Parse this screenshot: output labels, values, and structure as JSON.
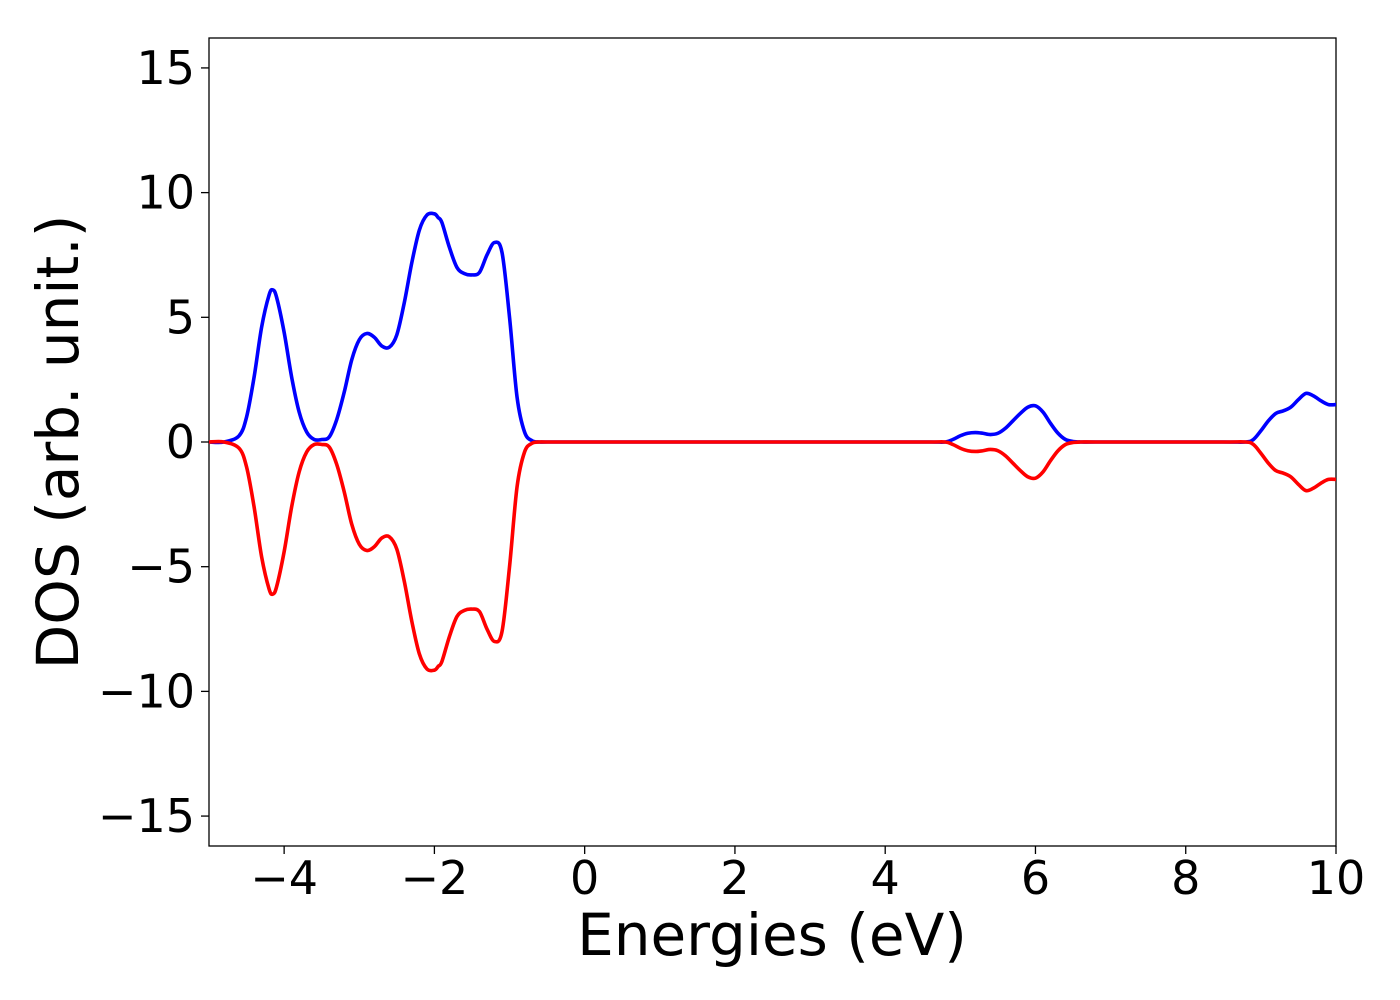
{
  "chart_data": {
    "type": "line",
    "xlabel": "Energies (eV)",
    "ylabel": "DOS (arb. unit.)",
    "xlim": [
      -5,
      10
    ],
    "ylim": [
      -16.2,
      16.2
    ],
    "x_ticks": [
      -4,
      -2,
      0,
      2,
      4,
      6,
      8,
      10
    ],
    "x_tick_labels": [
      "−4",
      "−2",
      "0",
      "2",
      "4",
      "6",
      "8",
      "10"
    ],
    "y_ticks": [
      15,
      10,
      5,
      0,
      -5,
      -10,
      -15
    ],
    "y_tick_labels": [
      "15",
      "10",
      "5",
      "0",
      "−5",
      "−10",
      "−15"
    ],
    "grid": false,
    "series": [
      {
        "color": "#0000ff",
        "x": [
          -5.0,
          -4.8,
          -4.6,
          -4.5,
          -4.4,
          -4.3,
          -4.2,
          -4.15,
          -4.1,
          -4.0,
          -3.9,
          -3.8,
          -3.7,
          -3.6,
          -3.5,
          -3.4,
          -3.3,
          -3.2,
          -3.1,
          -3.0,
          -2.9,
          -2.8,
          -2.7,
          -2.6,
          -2.5,
          -2.4,
          -2.3,
          -2.2,
          -2.1,
          -2.0,
          -1.95,
          -1.9,
          -1.8,
          -1.7,
          -1.6,
          -1.5,
          -1.4,
          -1.3,
          -1.2,
          -1.1,
          -1.0,
          -0.9,
          -0.8,
          -0.7,
          -0.6,
          -0.5,
          0.0,
          2.0,
          4.0,
          4.6,
          4.8,
          4.9,
          5.0,
          5.1,
          5.2,
          5.3,
          5.4,
          5.5,
          5.6,
          5.7,
          5.8,
          5.9,
          6.0,
          6.1,
          6.2,
          6.3,
          6.4,
          6.5,
          6.6,
          6.8,
          7.5,
          8.5,
          8.8,
          8.9,
          9.0,
          9.1,
          9.2,
          9.3,
          9.4,
          9.5,
          9.6,
          9.7,
          9.8,
          9.9,
          10.0
        ],
        "y": [
          0.0,
          0.0,
          0.25,
          1.0,
          2.6,
          4.6,
          5.9,
          6.1,
          5.8,
          4.4,
          2.6,
          1.2,
          0.4,
          0.1,
          0.1,
          0.2,
          0.9,
          2.0,
          3.3,
          4.1,
          4.35,
          4.2,
          3.85,
          3.8,
          4.3,
          5.6,
          7.2,
          8.5,
          9.1,
          9.15,
          9.0,
          8.8,
          7.8,
          7.0,
          6.75,
          6.7,
          6.8,
          7.5,
          8.0,
          7.6,
          5.0,
          1.8,
          0.4,
          0.05,
          0.0,
          0.0,
          0.0,
          0.0,
          0.0,
          0.0,
          0.0,
          0.1,
          0.25,
          0.35,
          0.38,
          0.35,
          0.3,
          0.35,
          0.55,
          0.85,
          1.15,
          1.4,
          1.45,
          1.2,
          0.75,
          0.35,
          0.1,
          0.02,
          0.0,
          0.0,
          0.0,
          0.0,
          0.0,
          0.1,
          0.45,
          0.85,
          1.15,
          1.25,
          1.4,
          1.7,
          1.95,
          1.85,
          1.65,
          1.5,
          1.5
        ]
      },
      {
        "color": "#ff0000",
        "x": [
          -5.0,
          -4.8,
          -4.6,
          -4.5,
          -4.4,
          -4.3,
          -4.2,
          -4.15,
          -4.1,
          -4.0,
          -3.9,
          -3.8,
          -3.7,
          -3.6,
          -3.5,
          -3.4,
          -3.3,
          -3.2,
          -3.1,
          -3.0,
          -2.9,
          -2.8,
          -2.7,
          -2.6,
          -2.5,
          -2.4,
          -2.3,
          -2.2,
          -2.1,
          -2.0,
          -1.95,
          -1.9,
          -1.8,
          -1.7,
          -1.6,
          -1.5,
          -1.4,
          -1.3,
          -1.2,
          -1.1,
          -1.0,
          -0.9,
          -0.8,
          -0.7,
          -0.6,
          -0.5,
          0.0,
          2.0,
          4.0,
          4.6,
          4.8,
          4.9,
          5.0,
          5.1,
          5.2,
          5.3,
          5.4,
          5.5,
          5.6,
          5.7,
          5.8,
          5.9,
          6.0,
          6.1,
          6.2,
          6.3,
          6.4,
          6.5,
          6.6,
          6.8,
          7.5,
          8.5,
          8.8,
          8.9,
          9.0,
          9.1,
          9.2,
          9.3,
          9.4,
          9.5,
          9.6,
          9.7,
          9.8,
          9.9,
          10.0
        ],
        "y": [
          0.0,
          0.0,
          -0.25,
          -1.0,
          -2.6,
          -4.6,
          -5.9,
          -6.1,
          -5.8,
          -4.4,
          -2.6,
          -1.2,
          -0.4,
          -0.1,
          -0.1,
          -0.2,
          -0.9,
          -2.0,
          -3.3,
          -4.1,
          -4.35,
          -4.2,
          -3.85,
          -3.8,
          -4.3,
          -5.6,
          -7.2,
          -8.5,
          -9.1,
          -9.15,
          -9.0,
          -8.8,
          -7.8,
          -7.0,
          -6.75,
          -6.7,
          -6.8,
          -7.5,
          -8.0,
          -7.6,
          -5.0,
          -1.8,
          -0.4,
          -0.05,
          0.0,
          0.0,
          0.0,
          0.0,
          0.0,
          0.0,
          0.0,
          -0.1,
          -0.25,
          -0.35,
          -0.38,
          -0.35,
          -0.3,
          -0.35,
          -0.55,
          -0.85,
          -1.15,
          -1.4,
          -1.45,
          -1.2,
          -0.75,
          -0.35,
          -0.1,
          -0.02,
          0.0,
          0.0,
          0.0,
          0.0,
          0.0,
          -0.1,
          -0.45,
          -0.85,
          -1.15,
          -1.25,
          -1.4,
          -1.7,
          -1.95,
          -1.85,
          -1.65,
          -1.5,
          -1.5
        ]
      }
    ]
  }
}
